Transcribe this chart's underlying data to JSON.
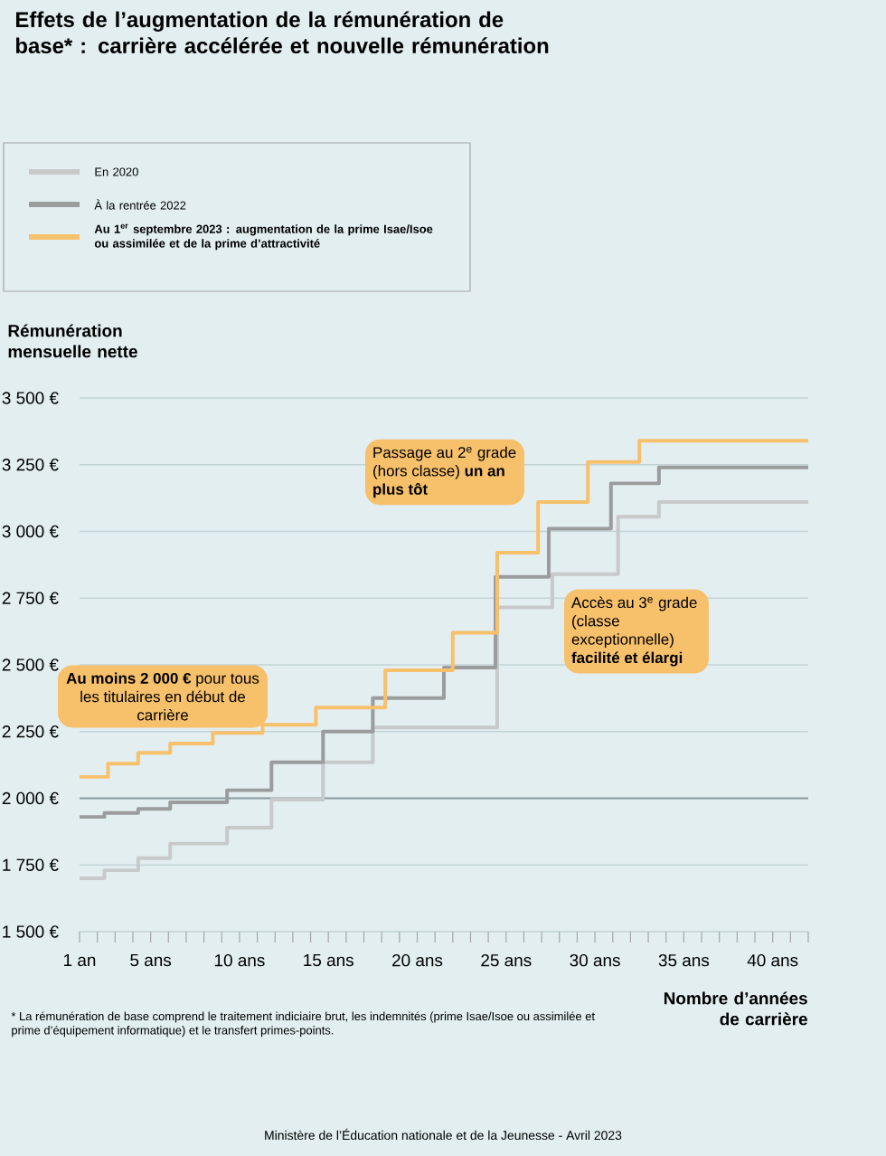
{
  "chart_data": {
    "type": "step",
    "title": "Effets de l’augmentation de la rémunération de base* : carrière accélérée et nouvelle rémunération",
    "ylabel": "Rémunération mensuelle nette",
    "xlabel": "Nombre d’années de carrière",
    "xlim": [
      1,
      42
    ],
    "xticks": [
      {
        "value": 1,
        "label": "1 an"
      },
      {
        "value": 2,
        "label": null
      },
      {
        "value": 3,
        "label": null
      },
      {
        "value": 4,
        "label": null
      },
      {
        "value": 5,
        "label": "5 ans"
      },
      {
        "value": 6,
        "label": null
      },
      {
        "value": 7,
        "label": null
      },
      {
        "value": 8,
        "label": null
      },
      {
        "value": 9,
        "label": null
      },
      {
        "value": 10,
        "label": "10 ans"
      },
      {
        "value": 11,
        "label": null
      },
      {
        "value": 12,
        "label": null
      },
      {
        "value": 13,
        "label": null
      },
      {
        "value": 14,
        "label": null
      },
      {
        "value": 15,
        "label": "15 ans"
      },
      {
        "value": 16,
        "label": null
      },
      {
        "value": 17,
        "label": null
      },
      {
        "value": 18,
        "label": null
      },
      {
        "value": 19,
        "label": null
      },
      {
        "value": 20,
        "label": "20 ans"
      },
      {
        "value": 21,
        "label": null
      },
      {
        "value": 22,
        "label": null
      },
      {
        "value": 23,
        "label": null
      },
      {
        "value": 24,
        "label": null
      },
      {
        "value": 25,
        "label": "25 ans"
      },
      {
        "value": 26,
        "label": null
      },
      {
        "value": 27,
        "label": null
      },
      {
        "value": 28,
        "label": null
      },
      {
        "value": 29,
        "label": null
      },
      {
        "value": 30,
        "label": "30 ans"
      },
      {
        "value": 31,
        "label": null
      },
      {
        "value": 32,
        "label": null
      },
      {
        "value": 33,
        "label": null
      },
      {
        "value": 34,
        "label": null
      },
      {
        "value": 35,
        "label": "35 ans"
      },
      {
        "value": 36,
        "label": null
      },
      {
        "value": 37,
        "label": null
      },
      {
        "value": 38,
        "label": null
      },
      {
        "value": 39,
        "label": null
      },
      {
        "value": 40,
        "label": "40 ans"
      },
      {
        "value": 41,
        "label": null
      },
      {
        "value": 42,
        "label": null
      }
    ],
    "ylim": [
      1500,
      3500
    ],
    "yticks": [
      {
        "value": 1500,
        "label": "1 500 €"
      },
      {
        "value": 1750,
        "label": "1 750 €"
      },
      {
        "value": 2000,
        "label": "2 000 €"
      },
      {
        "value": 2250,
        "label": "2 250 €"
      },
      {
        "value": 2500,
        "label": "2 500 €"
      },
      {
        "value": 2750,
        "label": "2 750 €"
      },
      {
        "value": 3000,
        "label": "3 000 €"
      },
      {
        "value": 3250,
        "label": "3 250 €"
      },
      {
        "value": 3500,
        "label": "3 500 €"
      }
    ],
    "grid": "y",
    "legend": "top left",
    "ref_lines": [
      {
        "axis": "y",
        "value": 2000,
        "color": "#8c9ca0"
      }
    ],
    "series": [
      {
        "name": "En 2020",
        "color": "#c8c9cb",
        "x": [
          1,
          2.4,
          4.3,
          6.1,
          9.3,
          11.8,
          14.7,
          17.5,
          24.5,
          27.6,
          31.3,
          33.6,
          42
        ],
        "values": [
          1700,
          1730,
          1775,
          1830,
          1890,
          1995,
          2135,
          2265,
          2715,
          2840,
          3055,
          3110,
          3110
        ]
      },
      {
        "name": "À la rentrée 2022",
        "color": "#9a9c9e",
        "x": [
          1,
          2.4,
          4.3,
          6.1,
          9.3,
          11.8,
          14.7,
          17.5,
          21.5,
          24.4,
          27.4,
          30.9,
          33.6,
          42
        ],
        "values": [
          1930,
          1945,
          1960,
          1985,
          2030,
          2135,
          2250,
          2375,
          2490,
          2830,
          3010,
          3180,
          3240,
          3240
        ]
      },
      {
        "name": "Au 1$^{er}$ septembre 2023 : augmentation de la prime Isae/Isoe ou assimilée et de la prime d’attractivité",
        "color": "#f7c06b",
        "x": [
          1,
          2.6,
          4.3,
          6.1,
          8.5,
          11.3,
          14.3,
          18.2,
          22,
          24.5,
          26.8,
          29.6,
          32.5,
          42
        ],
        "values": [
          2080,
          2130,
          2170,
          2205,
          2245,
          2275,
          2340,
          2480,
          2620,
          2920,
          3110,
          3260,
          3340,
          3340
        ]
      }
    ],
    "annotations": [
      "**Au moins 2 000 €** pour tous les titulaires en début de carrière",
      "Passage au 2$^{e}$ grade (hors classe) **un an plus tôt**",
      "Accès au 3$^{e}$ grade (classe exceptionnelle) **facilité et élargi**",
      "* La rémunération de base comprend le traitement indiciaire brut, les indemnités (prime Isae/Isoe ou assimilée et prime d’équipement informatique) et le transfert primes-points.",
      "Ministère de l’Éducation nationale et de la Jeunesse - Avril 2023"
    ]
  }
}
